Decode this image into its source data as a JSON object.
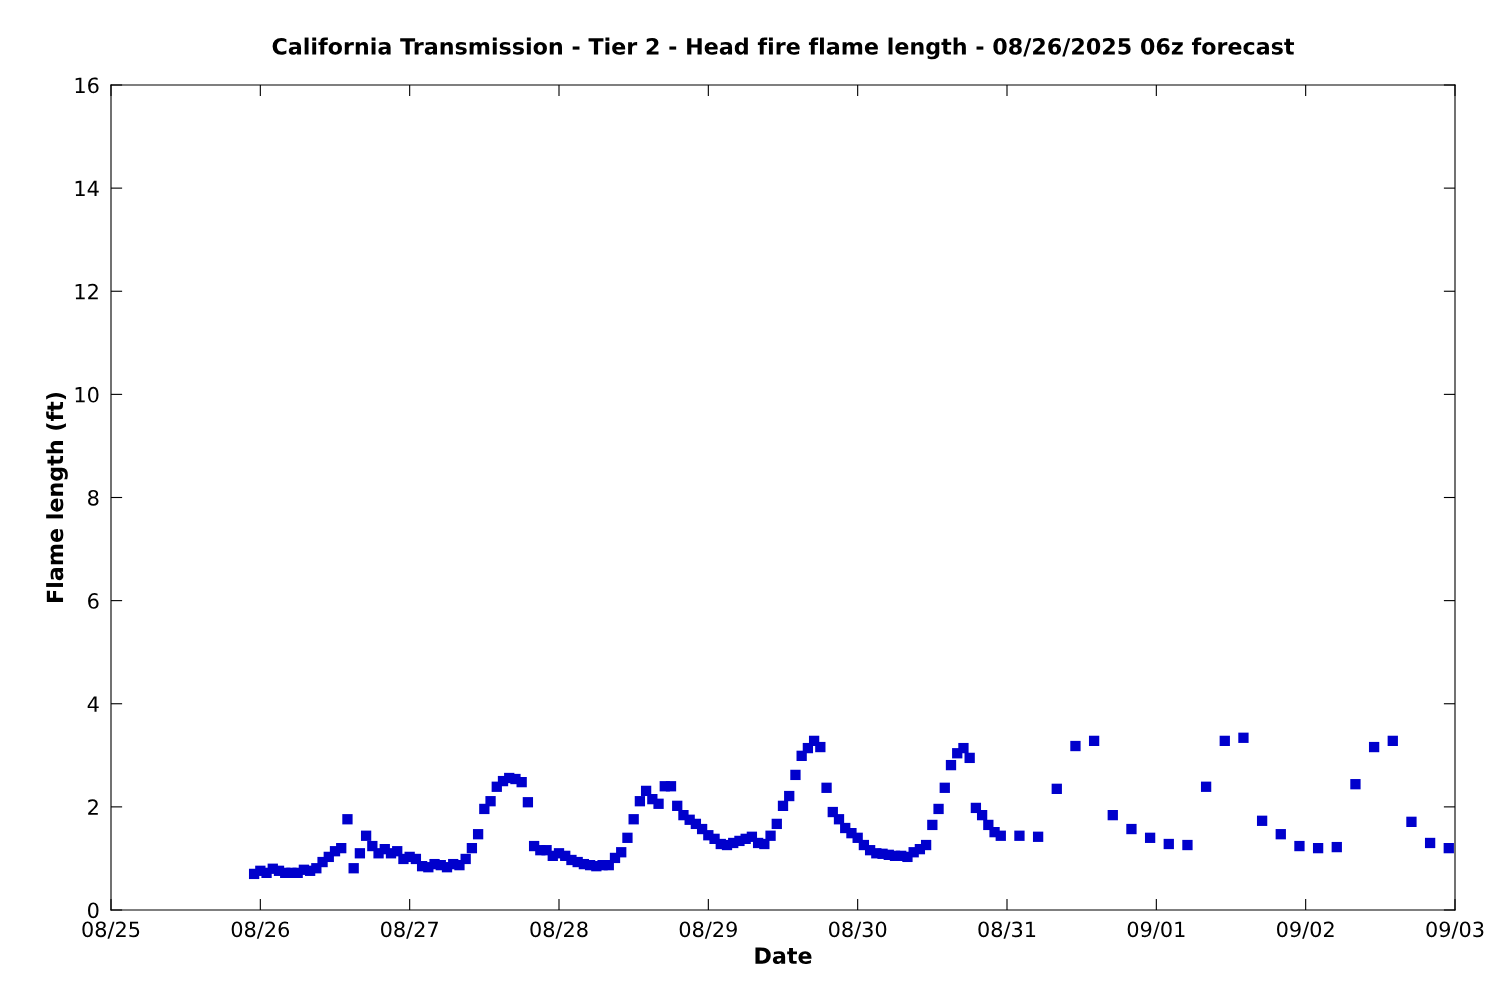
{
  "chart_data": {
    "type": "scatter",
    "title": "California Transmission - Tier 2 - Head fire flame length - 08/26/2025 06z forecast",
    "xlabel": "Date",
    "ylabel": "Flame length (ft)",
    "marker": "square",
    "grid": false,
    "xlim": [
      "2025-08-25",
      "2025-09-03"
    ],
    "xticks": [
      {
        "value": "2025-08-25",
        "label": "08/25"
      },
      {
        "value": "2025-08-26",
        "label": "08/26"
      },
      {
        "value": "2025-08-27",
        "label": "08/27"
      },
      {
        "value": "2025-08-28",
        "label": "08/28"
      },
      {
        "value": "2025-08-29",
        "label": "08/29"
      },
      {
        "value": "2025-08-30",
        "label": "08/30"
      },
      {
        "value": "2025-08-31",
        "label": "08/31"
      },
      {
        "value": "2025-09-01",
        "label": "09/01"
      },
      {
        "value": "2025-09-02",
        "label": "09/02"
      },
      {
        "value": "2025-09-03",
        "label": "09/03"
      }
    ],
    "ylim": [
      0,
      16
    ],
    "yticks": [
      0,
      2,
      4,
      6,
      8,
      10,
      12,
      14,
      16
    ],
    "series": [
      {
        "color": "#0000cc",
        "x": [
          "2025-08-25T23:00",
          "2025-08-26T00:00",
          "2025-08-26T01:00",
          "2025-08-26T02:00",
          "2025-08-26T03:00",
          "2025-08-26T04:00",
          "2025-08-26T05:00",
          "2025-08-26T06:00",
          "2025-08-26T07:00",
          "2025-08-26T08:00",
          "2025-08-26T09:00",
          "2025-08-26T10:00",
          "2025-08-26T11:00",
          "2025-08-26T12:00",
          "2025-08-26T13:00",
          "2025-08-26T14:00",
          "2025-08-26T15:00",
          "2025-08-26T16:00",
          "2025-08-26T17:00",
          "2025-08-26T18:00",
          "2025-08-26T19:00",
          "2025-08-26T20:00",
          "2025-08-26T21:00",
          "2025-08-26T22:00",
          "2025-08-26T23:00",
          "2025-08-27T00:00",
          "2025-08-27T01:00",
          "2025-08-27T02:00",
          "2025-08-27T03:00",
          "2025-08-27T04:00",
          "2025-08-27T05:00",
          "2025-08-27T06:00",
          "2025-08-27T07:00",
          "2025-08-27T08:00",
          "2025-08-27T09:00",
          "2025-08-27T10:00",
          "2025-08-27T11:00",
          "2025-08-27T12:00",
          "2025-08-27T13:00",
          "2025-08-27T14:00",
          "2025-08-27T15:00",
          "2025-08-27T16:00",
          "2025-08-27T17:00",
          "2025-08-27T18:00",
          "2025-08-27T19:00",
          "2025-08-27T20:00",
          "2025-08-27T21:00",
          "2025-08-27T22:00",
          "2025-08-27T23:00",
          "2025-08-28T00:00",
          "2025-08-28T01:00",
          "2025-08-28T02:00",
          "2025-08-28T03:00",
          "2025-08-28T04:00",
          "2025-08-28T05:00",
          "2025-08-28T06:00",
          "2025-08-28T07:00",
          "2025-08-28T08:00",
          "2025-08-28T09:00",
          "2025-08-28T10:00",
          "2025-08-28T11:00",
          "2025-08-28T12:00",
          "2025-08-28T13:00",
          "2025-08-28T14:00",
          "2025-08-28T15:00",
          "2025-08-28T16:00",
          "2025-08-28T17:00",
          "2025-08-28T18:00",
          "2025-08-28T19:00",
          "2025-08-28T20:00",
          "2025-08-28T21:00",
          "2025-08-28T22:00",
          "2025-08-28T23:00",
          "2025-08-29T00:00",
          "2025-08-29T01:00",
          "2025-08-29T02:00",
          "2025-08-29T03:00",
          "2025-08-29T04:00",
          "2025-08-29T05:00",
          "2025-08-29T06:00",
          "2025-08-29T07:00",
          "2025-08-29T08:00",
          "2025-08-29T09:00",
          "2025-08-29T10:00",
          "2025-08-29T11:00",
          "2025-08-29T12:00",
          "2025-08-29T13:00",
          "2025-08-29T14:00",
          "2025-08-29T15:00",
          "2025-08-29T16:00",
          "2025-08-29T17:00",
          "2025-08-29T18:00",
          "2025-08-29T19:00",
          "2025-08-29T20:00",
          "2025-08-29T21:00",
          "2025-08-29T22:00",
          "2025-08-29T23:00",
          "2025-08-30T00:00",
          "2025-08-30T01:00",
          "2025-08-30T02:00",
          "2025-08-30T03:00",
          "2025-08-30T04:00",
          "2025-08-30T05:00",
          "2025-08-30T06:00",
          "2025-08-30T07:00",
          "2025-08-30T08:00",
          "2025-08-30T09:00",
          "2025-08-30T10:00",
          "2025-08-30T11:00",
          "2025-08-30T12:00",
          "2025-08-30T13:00",
          "2025-08-30T14:00",
          "2025-08-30T15:00",
          "2025-08-30T16:00",
          "2025-08-30T17:00",
          "2025-08-30T18:00",
          "2025-08-30T19:00",
          "2025-08-30T20:00",
          "2025-08-30T21:00",
          "2025-08-30T22:00",
          "2025-08-30T23:00",
          "2025-08-31T02:00",
          "2025-08-31T05:00",
          "2025-08-31T08:00",
          "2025-08-31T11:00",
          "2025-08-31T14:00",
          "2025-08-31T17:00",
          "2025-08-31T20:00",
          "2025-08-31T23:00",
          "2025-09-01T02:00",
          "2025-09-01T05:00",
          "2025-09-01T08:00",
          "2025-09-01T11:00",
          "2025-09-01T14:00",
          "2025-09-01T17:00",
          "2025-09-01T20:00",
          "2025-09-01T23:00",
          "2025-09-02T02:00",
          "2025-09-02T05:00",
          "2025-09-02T08:00",
          "2025-09-02T11:00",
          "2025-09-02T14:00",
          "2025-09-02T17:00",
          "2025-09-02T20:00",
          "2025-09-02T23:00"
        ],
        "values": [
          0.7,
          0.76,
          0.72,
          0.8,
          0.76,
          0.72,
          0.72,
          0.72,
          0.78,
          0.76,
          0.81,
          0.93,
          1.03,
          1.14,
          1.2,
          1.76,
          0.81,
          1.1,
          1.44,
          1.24,
          1.1,
          1.18,
          1.1,
          1.14,
          0.99,
          1.03,
          0.99,
          0.85,
          0.83,
          0.89,
          0.87,
          0.83,
          0.89,
          0.87,
          0.99,
          1.2,
          1.47,
          1.96,
          2.11,
          2.39,
          2.5,
          2.56,
          2.54,
          2.48,
          2.09,
          1.24,
          1.16,
          1.16,
          1.05,
          1.1,
          1.05,
          0.97,
          0.93,
          0.89,
          0.87,
          0.85,
          0.87,
          0.87,
          1.01,
          1.12,
          1.4,
          1.76,
          2.11,
          2.31,
          2.15,
          2.06,
          2.4,
          2.4,
          2.02,
          1.84,
          1.75,
          1.67,
          1.57,
          1.45,
          1.38,
          1.28,
          1.26,
          1.3,
          1.34,
          1.38,
          1.42,
          1.3,
          1.28,
          1.44,
          1.67,
          2.02,
          2.21,
          2.62,
          2.99,
          3.14,
          3.28,
          3.16,
          2.37,
          1.9,
          1.76,
          1.59,
          1.49,
          1.4,
          1.26,
          1.16,
          1.1,
          1.09,
          1.07,
          1.05,
          1.05,
          1.03,
          1.12,
          1.18,
          1.26,
          1.65,
          1.96,
          2.37,
          2.81,
          3.04,
          3.14,
          2.95,
          1.98,
          1.84,
          1.65,
          1.51,
          1.44,
          1.44,
          1.42,
          2.35,
          3.18,
          3.28,
          1.84,
          1.57,
          1.4,
          1.28,
          1.26,
          2.39,
          3.28,
          3.34,
          1.73,
          1.47,
          1.24,
          1.2,
          1.22,
          2.44,
          3.16,
          3.28,
          1.71,
          1.3,
          1.2
        ]
      }
    ]
  }
}
